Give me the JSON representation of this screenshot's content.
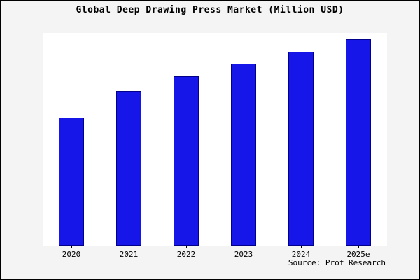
{
  "title": "Global Deep Drawing Press Market (Million USD)",
  "source": "Source: Prof Research",
  "colors": {
    "bar_fill": "#1616e8",
    "bar_border": "#00008b",
    "plot_background": "#ffffff",
    "outer_background": "#f4f4f4",
    "axis": "#000000"
  },
  "chart_data": {
    "type": "bar",
    "title": "Global Deep Drawing Press Market (Million USD)",
    "categories": [
      "2020",
      "2021",
      "2022",
      "2023",
      "2024",
      "2025e"
    ],
    "values": [
      62,
      75,
      82,
      88,
      94,
      100
    ],
    "xlabel": "",
    "ylabel": "",
    "ylim": [
      0,
      100
    ],
    "grid": false,
    "legend_position": "none",
    "y_axis_labels_visible": false
  }
}
